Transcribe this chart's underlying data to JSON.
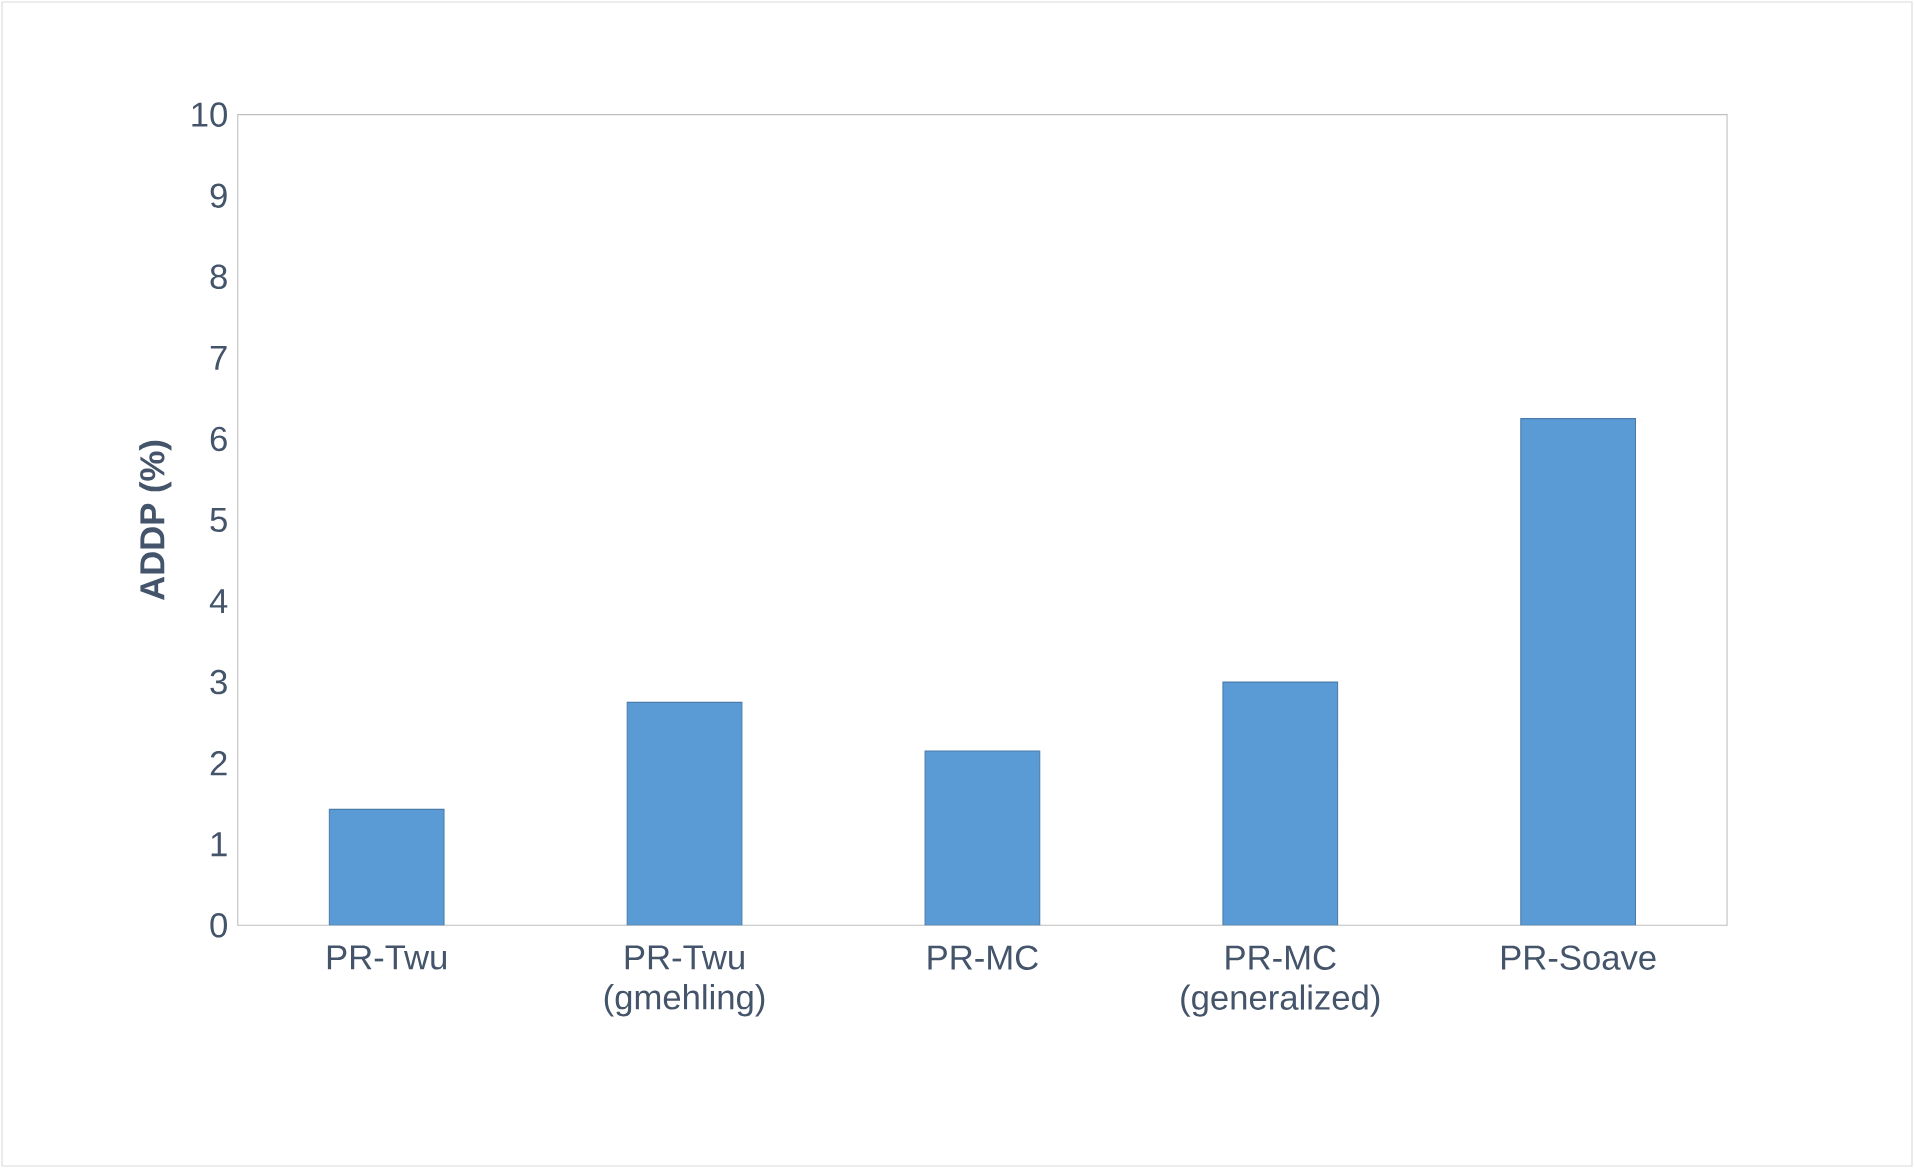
{
  "chart_data": {
    "type": "bar",
    "ylabel": "**ADDP (%)**",
    "categories": [
      "PR-Twu",
      "PR-Twu (gmehling)",
      "PR-MC",
      "PR-MC (generalized)",
      "PR-Soave"
    ],
    "values": [
      1.43,
      2.75,
      2.15,
      3.0,
      6.25
    ],
    "color": "#5b9bd5",
    "ylim": [
      0,
      10
    ],
    "yticks": [
      0,
      1,
      2,
      3,
      4,
      5,
      6,
      7,
      8,
      9,
      10
    ],
    "grid": false
  }
}
